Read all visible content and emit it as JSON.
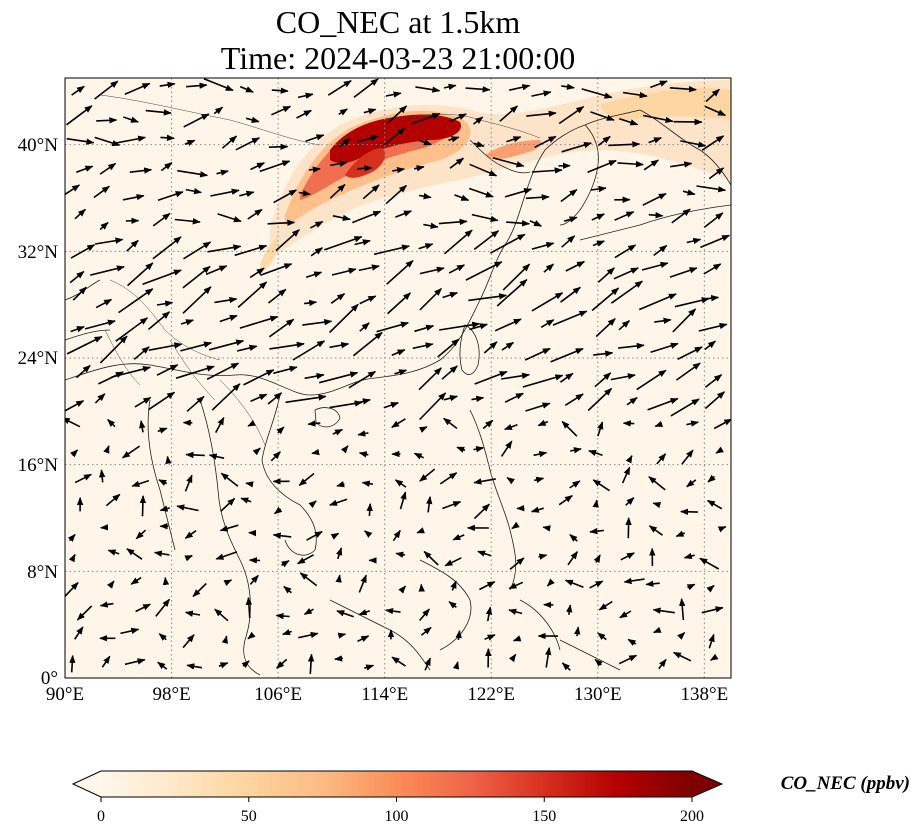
{
  "title": {
    "line1": "CO_NEC at 1.5km",
    "line2": "Time: 2024-03-23 21:00:00"
  },
  "map": {
    "lon_range": [
      90,
      140
    ],
    "lat_range": [
      0,
      45
    ],
    "lon_ticks": [
      "90°E",
      "98°E",
      "106°E",
      "114°E",
      "122°E",
      "130°E",
      "138°E"
    ],
    "lon_tick_values": [
      90,
      98,
      106,
      114,
      122,
      130,
      138
    ],
    "lat_ticks": [
      "0°",
      "8°N",
      "16°N",
      "24°N",
      "32°N",
      "40°N"
    ],
    "lat_tick_values": [
      0,
      8,
      16,
      24,
      32,
      40
    ],
    "gridlines": true,
    "background_color": "#fff5e8"
  },
  "colorbar": {
    "label": "CO_NEC (ppbv)",
    "ticks": [
      "0",
      "50",
      "100",
      "150",
      "200"
    ],
    "tick_values": [
      0,
      50,
      100,
      150,
      200
    ],
    "range": [
      0,
      200
    ],
    "extend": "both",
    "colormap": "OrRd",
    "colors": [
      "#fff7ec",
      "#fee8c8",
      "#fdd49e",
      "#fdbb84",
      "#fc8d59",
      "#ef6548",
      "#d7301f",
      "#b30000",
      "#7f0000"
    ]
  }
}
